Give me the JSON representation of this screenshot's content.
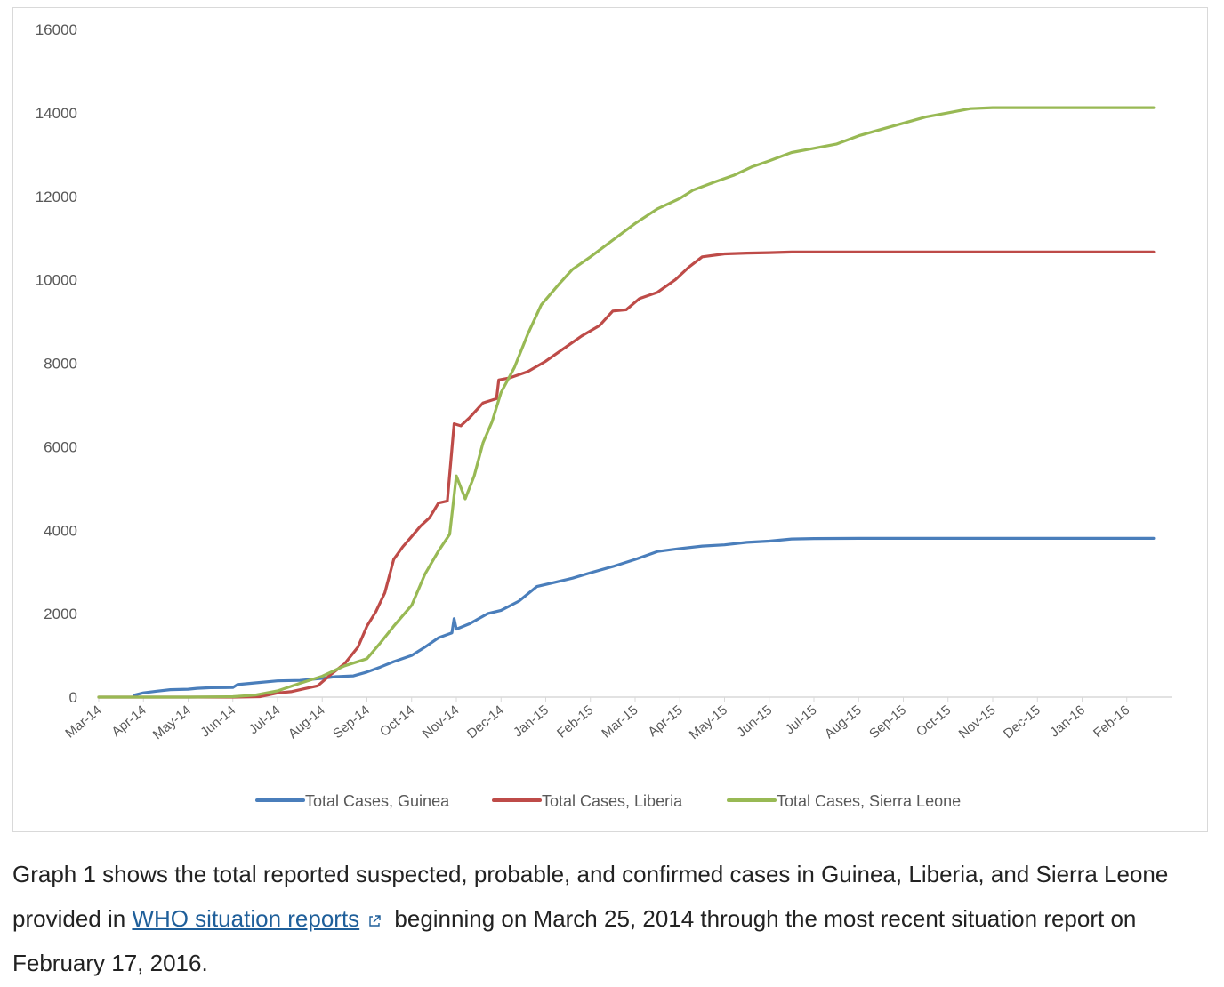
{
  "chart_data": {
    "type": "line",
    "title": "",
    "xlabel": "",
    "ylabel": "",
    "ylim": [
      0,
      16000
    ],
    "yticks": [
      0,
      2000,
      4000,
      6000,
      8000,
      10000,
      12000,
      14000,
      16000
    ],
    "xticks": [
      "Mar-14",
      "Apr-14",
      "May-14",
      "Jun-14",
      "Jul-14",
      "Aug-14",
      "Sep-14",
      "Oct-14",
      "Nov-14",
      "Dec-14",
      "Jan-15",
      "Feb-15",
      "Mar-15",
      "Apr-15",
      "May-15",
      "Jun-15",
      "Jul-15",
      "Aug-15",
      "Sep-15",
      "Oct-15",
      "Nov-15",
      "Dec-15",
      "Jan-16",
      "Feb-16"
    ],
    "x_unit": "month index (0 = Mar-14)",
    "xlim": [
      0,
      24
    ],
    "grid": false,
    "legend_position": "bottom",
    "series": [
      {
        "name": "Total Cases, Guinea",
        "color": "#4a7ebb",
        "points": [
          [
            0.8,
            49
          ],
          [
            1.0,
            103
          ],
          [
            1.3,
            143
          ],
          [
            1.6,
            180
          ],
          [
            2.0,
            190
          ],
          [
            2.2,
            210
          ],
          [
            2.5,
            225
          ],
          [
            3.0,
            230
          ],
          [
            3.1,
            300
          ],
          [
            3.5,
            340
          ],
          [
            4.0,
            390
          ],
          [
            4.5,
            400
          ],
          [
            5.0,
            450
          ],
          [
            5.3,
            490
          ],
          [
            5.7,
            510
          ],
          [
            6.0,
            600
          ],
          [
            6.3,
            720
          ],
          [
            6.6,
            850
          ],
          [
            7.0,
            1000
          ],
          [
            7.3,
            1200
          ],
          [
            7.6,
            1420
          ],
          [
            7.9,
            1540
          ],
          [
            7.95,
            1880
          ],
          [
            8.0,
            1630
          ],
          [
            8.3,
            1760
          ],
          [
            8.7,
            2000
          ],
          [
            9.0,
            2080
          ],
          [
            9.4,
            2300
          ],
          [
            9.8,
            2650
          ],
          [
            10.2,
            2750
          ],
          [
            10.6,
            2850
          ],
          [
            11.0,
            2980
          ],
          [
            11.5,
            3130
          ],
          [
            12.0,
            3300
          ],
          [
            12.5,
            3490
          ],
          [
            13.0,
            3560
          ],
          [
            13.5,
            3620
          ],
          [
            14.0,
            3650
          ],
          [
            14.5,
            3710
          ],
          [
            15.0,
            3740
          ],
          [
            15.5,
            3790
          ],
          [
            16.0,
            3800
          ],
          [
            17,
            3804
          ],
          [
            18,
            3804
          ],
          [
            19,
            3804
          ],
          [
            20,
            3804
          ],
          [
            21,
            3804
          ],
          [
            22,
            3804
          ],
          [
            23,
            3804
          ],
          [
            23.6,
            3804
          ]
        ]
      },
      {
        "name": "Total Cases, Liberia",
        "color": "#be4b48",
        "points": [
          [
            0,
            0
          ],
          [
            1,
            0
          ],
          [
            2,
            0
          ],
          [
            3,
            0
          ],
          [
            3.6,
            10
          ],
          [
            4,
            100
          ],
          [
            4.3,
            130
          ],
          [
            4.6,
            200
          ],
          [
            4.9,
            270
          ],
          [
            5.2,
            550
          ],
          [
            5.5,
            800
          ],
          [
            5.8,
            1200
          ],
          [
            6.0,
            1700
          ],
          [
            6.2,
            2050
          ],
          [
            6.4,
            2500
          ],
          [
            6.6,
            3300
          ],
          [
            6.8,
            3600
          ],
          [
            7.0,
            3850
          ],
          [
            7.2,
            4100
          ],
          [
            7.4,
            4300
          ],
          [
            7.6,
            4650
          ],
          [
            7.8,
            4700
          ],
          [
            7.95,
            6550
          ],
          [
            8.1,
            6500
          ],
          [
            8.3,
            6700
          ],
          [
            8.6,
            7050
          ],
          [
            8.9,
            7150
          ],
          [
            8.95,
            7600
          ],
          [
            9.2,
            7650
          ],
          [
            9.6,
            7800
          ],
          [
            10.0,
            8050
          ],
          [
            10.4,
            8350
          ],
          [
            10.8,
            8650
          ],
          [
            11.2,
            8900
          ],
          [
            11.5,
            9250
          ],
          [
            11.8,
            9280
          ],
          [
            12.1,
            9550
          ],
          [
            12.5,
            9700
          ],
          [
            12.9,
            10000
          ],
          [
            13.2,
            10300
          ],
          [
            13.5,
            10550
          ],
          [
            14.0,
            10620
          ],
          [
            14.5,
            10640
          ],
          [
            15.0,
            10650
          ],
          [
            15.5,
            10666
          ],
          [
            16,
            10666
          ],
          [
            17,
            10666
          ],
          [
            18,
            10666
          ],
          [
            19,
            10666
          ],
          [
            20,
            10666
          ],
          [
            21,
            10666
          ],
          [
            22,
            10666
          ],
          [
            23,
            10666
          ],
          [
            23.6,
            10666
          ]
        ]
      },
      {
        "name": "Total Cases, Sierra Leone",
        "color": "#98b954",
        "points": [
          [
            0,
            0
          ],
          [
            1,
            0
          ],
          [
            2,
            0
          ],
          [
            3,
            10
          ],
          [
            3.5,
            50
          ],
          [
            4,
            150
          ],
          [
            4.5,
            330
          ],
          [
            5,
            500
          ],
          [
            5.5,
            750
          ],
          [
            6,
            920
          ],
          [
            6.3,
            1300
          ],
          [
            6.6,
            1700
          ],
          [
            7.0,
            2200
          ],
          [
            7.3,
            2950
          ],
          [
            7.6,
            3500
          ],
          [
            7.85,
            3900
          ],
          [
            8.0,
            5300
          ],
          [
            8.2,
            4750
          ],
          [
            8.4,
            5300
          ],
          [
            8.6,
            6100
          ],
          [
            8.8,
            6600
          ],
          [
            9.0,
            7300
          ],
          [
            9.3,
            7900
          ],
          [
            9.6,
            8700
          ],
          [
            9.9,
            9400
          ],
          [
            10.3,
            9900
          ],
          [
            10.6,
            10250
          ],
          [
            11.0,
            10550
          ],
          [
            11.5,
            10950
          ],
          [
            12.0,
            11350
          ],
          [
            12.5,
            11700
          ],
          [
            13.0,
            11950
          ],
          [
            13.3,
            12150
          ],
          [
            13.8,
            12350
          ],
          [
            14.2,
            12500
          ],
          [
            14.6,
            12700
          ],
          [
            15.0,
            12850
          ],
          [
            15.5,
            13050
          ],
          [
            16.0,
            13150
          ],
          [
            16.5,
            13250
          ],
          [
            17.0,
            13450
          ],
          [
            17.5,
            13600
          ],
          [
            18.0,
            13750
          ],
          [
            18.5,
            13900
          ],
          [
            19.0,
            14000
          ],
          [
            19.5,
            14100
          ],
          [
            20,
            14122
          ],
          [
            21,
            14122
          ],
          [
            22,
            14122
          ],
          [
            23,
            14122
          ],
          [
            23.6,
            14122
          ]
        ]
      }
    ]
  },
  "caption": {
    "text_before": "Graph 1 shows the total reported suspected, probable, and confirmed cases in Guinea, Liberia, and Sierra Leone provided in ",
    "link_text": "WHO situation reports",
    "text_after": " beginning on March 25, 2014 through the most recent situation report on February 17, 2016.",
    "link_icon": "external-link-icon",
    "link_color": "#1f5f9a"
  }
}
